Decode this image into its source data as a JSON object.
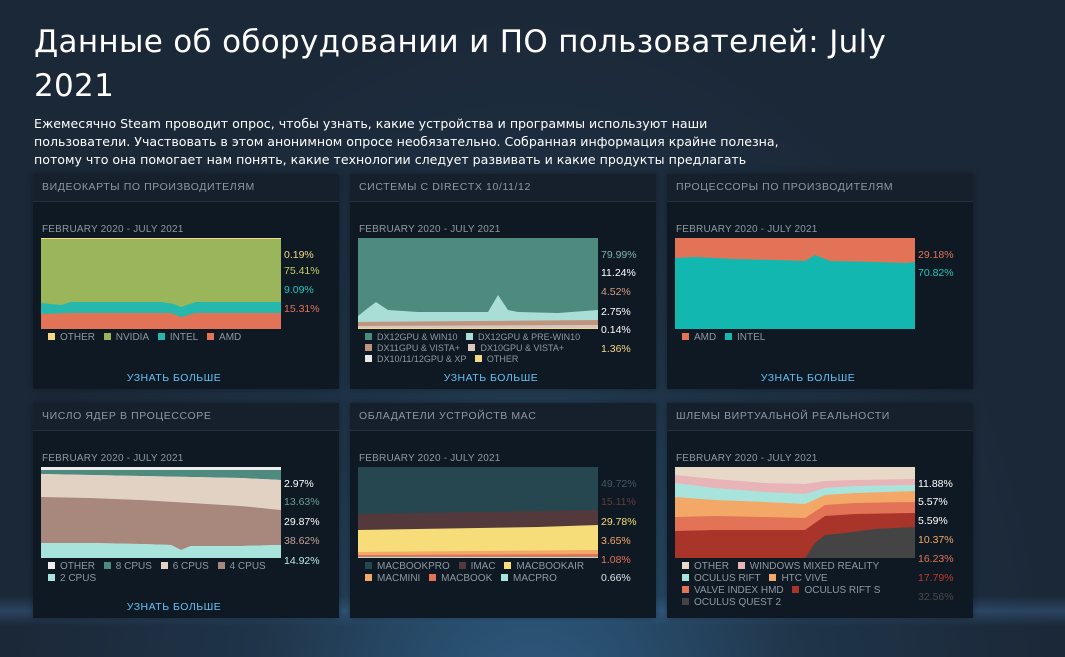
{
  "page": {
    "title": "Данные об оборудовании и ПО пользователей: July 2021",
    "intro": "Ежемесячно Steam проводит опрос, чтобы узнать, какие устройства и программы используют наши пользователи. Участвовать в этом анонимном опросе необязательно. Собранная информация крайне полезна, потому что она помогает нам понять, какие технологии следует развивать и какие продукты предлагать пользователям."
  },
  "learn_more": "УЗНАТЬ БОЛЬШЕ",
  "panels": {
    "gpu": {
      "title": "ВИДЕОКАРТЫ ПО ПРОИЗВОДИТЕЛЯМ",
      "range": "FEBRUARY 2020 - JULY 2021",
      "pcts": [
        {
          "value": "0.19%",
          "color": "#f3d88a"
        },
        {
          "value": "75.41%",
          "color": "#c2d165"
        },
        {
          "value": "9.09%",
          "color": "#26c7b9"
        },
        {
          "value": "15.31%",
          "color": "#e27357"
        }
      ],
      "legend": [
        {
          "label": "OTHER",
          "color": "#f3d88a"
        },
        {
          "label": "NVIDIA",
          "color": "#9bb65a"
        },
        {
          "label": "INTEL",
          "color": "#26b8ad"
        },
        {
          "label": "AMD",
          "color": "#e27357"
        }
      ]
    },
    "directx": {
      "title": "СИСТЕМЫ С DIRECTX 10/11/12",
      "range": "FEBRUARY 2020 - JULY 2021",
      "pcts": [
        {
          "value": "79.99%",
          "color": "#7fb2aa"
        },
        {
          "value": "11.24%",
          "color": "#ffffff"
        },
        {
          "value": "4.52%",
          "color": "#d49c80"
        },
        {
          "value": "2.75%",
          "color": "#ffffff"
        },
        {
          "value": "0.14%",
          "color": "#ffffff"
        },
        {
          "value": "1.36%",
          "color": "#f3d88a"
        }
      ],
      "legend": [
        {
          "label": "DX12GPU & WIN10",
          "color": "#4e8a7e"
        },
        {
          "label": "DX12GPU & PRE-WIN10",
          "color": "#a8ded6"
        },
        {
          "label": "DX11GPU & VISTA+",
          "color": "#c09580"
        },
        {
          "label": "DX10GPU & VISTA+",
          "color": "#d8c8bc"
        },
        {
          "label": "DX10/11/12GPU & XP",
          "color": "#e8e8e8"
        },
        {
          "label": "OTHER",
          "color": "#f3d88a"
        }
      ]
    },
    "cpu": {
      "title": "ПРОЦЕССОРЫ ПО ПРОИЗВОДИТЕЛЯМ",
      "range": "FEBRUARY 2020 - JULY 2021",
      "pcts": [
        {
          "value": "29.18%",
          "color": "#e27357"
        },
        {
          "value": "70.82%",
          "color": "#26c7b9"
        }
      ],
      "legend": [
        {
          "label": "AMD",
          "color": "#e27357"
        },
        {
          "label": "INTEL",
          "color": "#12b8b0"
        }
      ]
    },
    "cores": {
      "title": "ЧИСЛО ЯДЕР В ПРОЦЕССОРЕ",
      "range": "FEBRUARY 2020 - JULY 2021",
      "pcts": [
        {
          "value": "2.97%",
          "color": "#ffffff"
        },
        {
          "value": "13.63%",
          "color": "#6a9d93"
        },
        {
          "value": "29.87%",
          "color": "#ffffff"
        },
        {
          "value": "38.62%",
          "color": "#c4a396"
        },
        {
          "value": "14.92%",
          "color": "#b8ece4"
        }
      ],
      "legend": [
        {
          "label": "OTHER",
          "color": "#eeeeee"
        },
        {
          "label": "8 CPUS",
          "color": "#4e8a7e"
        },
        {
          "label": "6 CPUS",
          "color": "#e2d2c4"
        },
        {
          "label": "4 CPUS",
          "color": "#a8877c"
        },
        {
          "label": "2 CPUS",
          "color": "#a8e4dc"
        }
      ]
    },
    "mac": {
      "title": "ОБЛАДАТЕЛИ УСТРОЙСТВ MAC",
      "range": "FEBRUARY 2020 - JULY 2021",
      "pcts": [
        {
          "value": "49.72%",
          "color": "#3f5a63"
        },
        {
          "value": "15.11%",
          "color": "#5e3d40"
        },
        {
          "value": "29.78%",
          "color": "#f6dd7a"
        },
        {
          "value": "3.65%",
          "color": "#f3a868"
        },
        {
          "value": "1.08%",
          "color": "#e27357"
        },
        {
          "value": "0.66%",
          "color": "#d6e6e6"
        }
      ],
      "legend": [
        {
          "label": "MACBOOKPRO",
          "color": "#26474f"
        },
        {
          "label": "IMAC",
          "color": "#54393c"
        },
        {
          "label": "MACBOOKAIR",
          "color": "#f6dd7a"
        },
        {
          "label": "MACMINI",
          "color": "#f3a868"
        },
        {
          "label": "MACBOOK",
          "color": "#e27357"
        },
        {
          "label": "MACPRO",
          "color": "#a8e4dc"
        }
      ]
    },
    "vr": {
      "title": "ШЛЕМЫ ВИРТУАЛЬНОЙ РЕАЛЬНОСТИ",
      "range": "FEBRUARY 2020 - JULY 2021",
      "pcts": [
        {
          "value": "11.88%",
          "color": "#ffffff"
        },
        {
          "value": "5.57%",
          "color": "#ffffff"
        },
        {
          "value": "5.59%",
          "color": "#ffffff"
        },
        {
          "value": "10.37%",
          "color": "#f3a868"
        },
        {
          "value": "16.23%",
          "color": "#e27357"
        },
        {
          "value": "17.79%",
          "color": "#c0392b"
        },
        {
          "value": "32.56%",
          "color": "#4a4a4a"
        }
      ],
      "legend": [
        {
          "label": "OTHER",
          "color": "#e8d8c8"
        },
        {
          "label": "WINDOWS MIXED REALITY",
          "color": "#e8b4b8"
        },
        {
          "label": "OCULUS RIFT",
          "color": "#a8e4dc"
        },
        {
          "label": "HTC VIVE",
          "color": "#f3a868"
        },
        {
          "label": "VALVE INDEX HMD",
          "color": "#e27357"
        },
        {
          "label": "OCULUS RIFT S",
          "color": "#a8342a"
        },
        {
          "label": "OCULUS QUEST 2",
          "color": "#444444"
        }
      ]
    }
  }
}
